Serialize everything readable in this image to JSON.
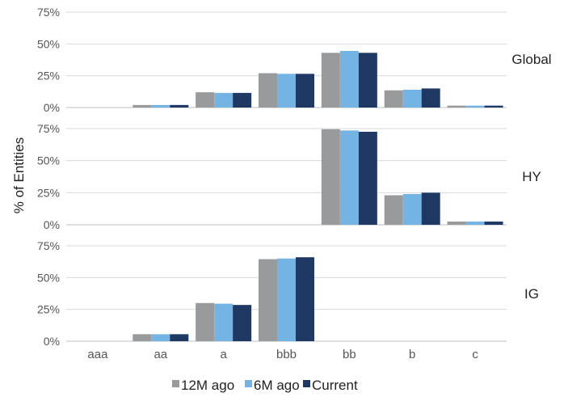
{
  "chart_data": {
    "type": "bar",
    "ylabel": "% of Entities",
    "categories": [
      "aaa",
      "aa",
      "a",
      "bbb",
      "bb",
      "b",
      "c"
    ],
    "y_ticks": [
      "0%",
      "25%",
      "50%",
      "75%"
    ],
    "ylim": [
      0,
      75
    ],
    "grid": true,
    "legend_position": "bottom",
    "series_names": [
      "12M ago",
      "6M ago",
      "Current"
    ],
    "series_colors": [
      "#999a9c",
      "#74b4e5",
      "#1f3864"
    ],
    "panels": [
      {
        "label": "Global",
        "series": [
          {
            "name": "12M ago",
            "values": [
              0,
              2,
              12,
              27,
              43,
              13.5,
              1.5
            ]
          },
          {
            "name": "6M ago",
            "values": [
              0,
              2,
              11.5,
              26.5,
              44.5,
              14,
              1.5
            ]
          },
          {
            "name": "Current",
            "values": [
              0,
              2,
              11.5,
              26.5,
              43,
              15,
              1.5
            ]
          }
        ]
      },
      {
        "label": "HY",
        "series": [
          {
            "name": "12M ago",
            "values": [
              0,
              0,
              0,
              0,
              74.5,
              23,
              2.5
            ]
          },
          {
            "name": "6M ago",
            "values": [
              0,
              0,
              0,
              0,
              73.5,
              24,
              2.5
            ]
          },
          {
            "name": "Current",
            "values": [
              0,
              0,
              0,
              0,
              72.5,
              25,
              2.5
            ]
          }
        ]
      },
      {
        "label": "IG",
        "series": [
          {
            "name": "12M ago",
            "values": [
              0,
              5.5,
              30,
              64.5,
              0,
              0,
              0
            ]
          },
          {
            "name": "6M ago",
            "values": [
              0,
              5.5,
              29.5,
              65,
              0,
              0,
              0
            ]
          },
          {
            "name": "Current",
            "values": [
              0,
              5.5,
              28.5,
              66,
              0,
              0,
              0
            ]
          }
        ]
      }
    ]
  }
}
